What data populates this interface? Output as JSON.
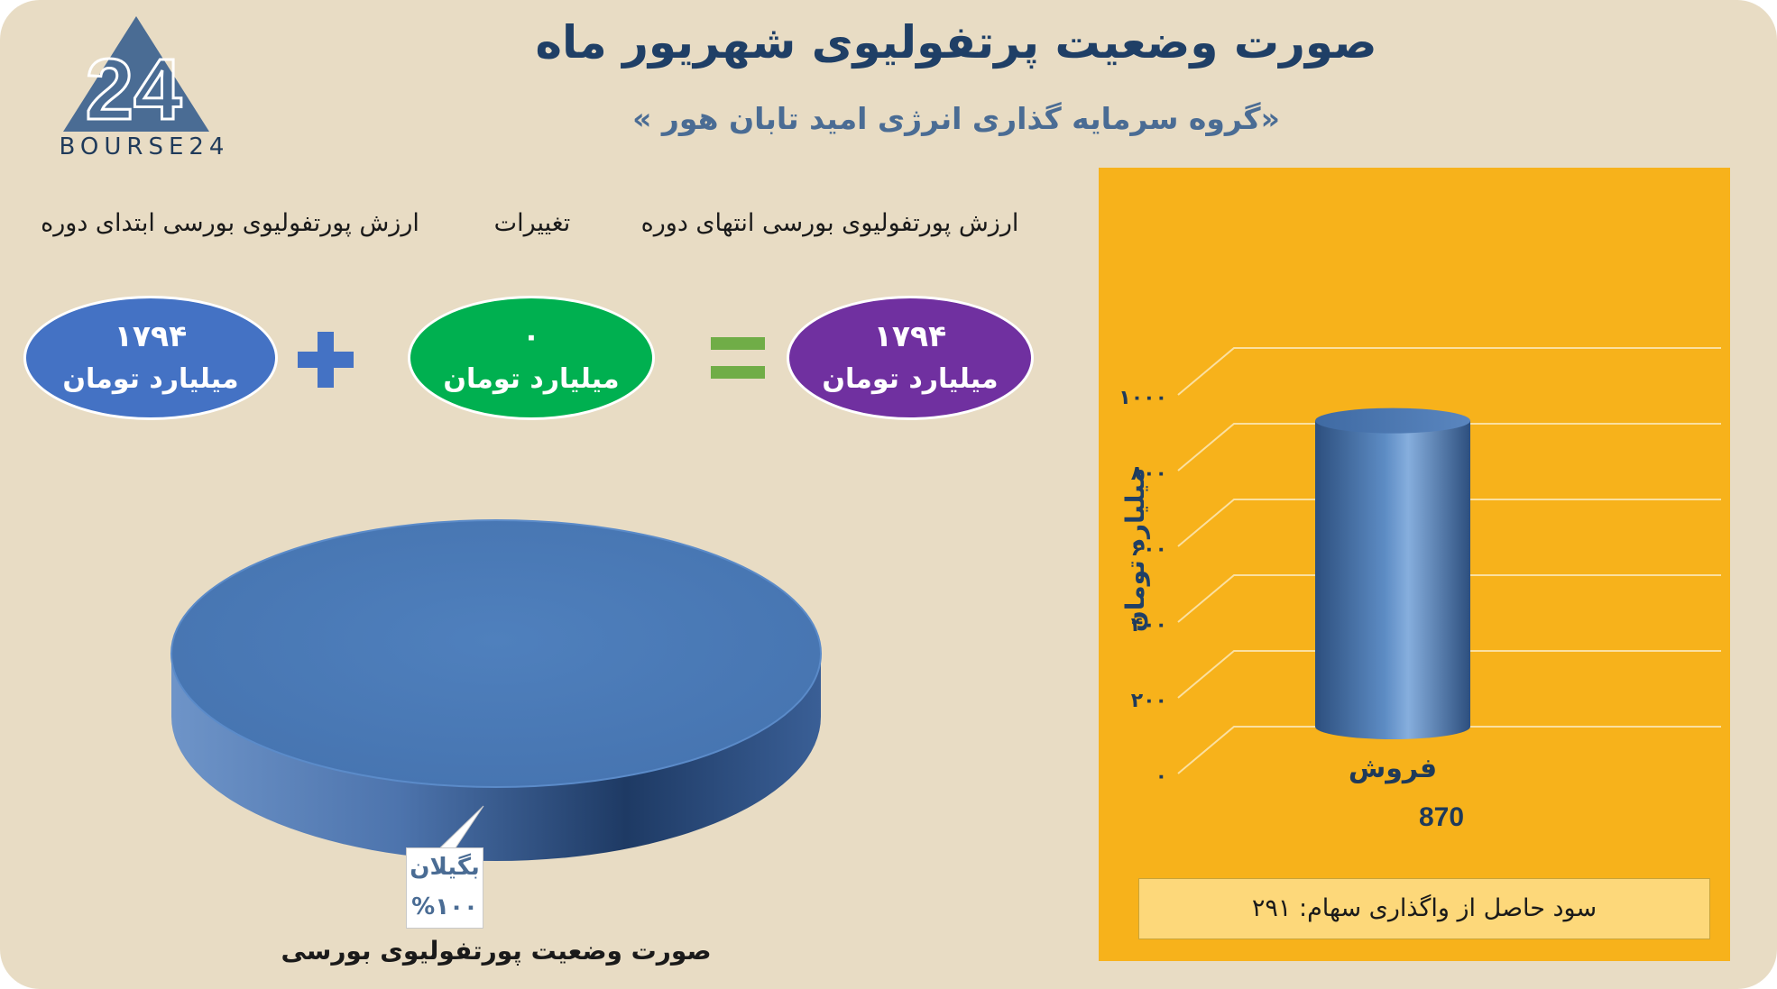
{
  "header": {
    "title": "صورت وضعیت پرتفولیوی شهریور ماه",
    "subtitle": "«گروه سرمایه گذاری انرژی امید تابان هور »"
  },
  "logo": {
    "mark": "24",
    "text": "BOURSE24"
  },
  "equation": {
    "labels": {
      "end": "ارزش پورتفولیوی بورسی انتهای دوره",
      "change": "تغییرات",
      "start": "ارزش پورتفولیوی بورسی ابتدای دوره"
    },
    "start": {
      "value": "۱۷۹۴",
      "unit": "میلیارد تومان"
    },
    "change": {
      "value": "۰",
      "unit": "میلیارد تومان"
    },
    "end": {
      "value": "۱۷۹۴",
      "unit": "میلیارد تومان"
    },
    "plus_icon": "plus-icon",
    "equals_icon": "equals-icon"
  },
  "colors": {
    "blue": "#4472c4",
    "green": "#00b050",
    "purple": "#7030a0",
    "accent_green": "#70ad47",
    "panel": "#f7b21b",
    "cylinder": "#4f81bd"
  },
  "pie": {
    "caption": "صورت وضعیت پورتفولیوی بورسی",
    "label_name": "بگیلان",
    "label_percent": "%۱۰۰"
  },
  "sales": {
    "profit_text": "سود حاصل از واگذاری سهام: ۲۹۱"
  },
  "chart_data": [
    {
      "type": "pie",
      "categories": [
        "بگیلان"
      ],
      "values": [
        100
      ],
      "labels": [
        "%۱۰۰"
      ],
      "title": "صورت وضعیت پورتفولیوی بورسی"
    },
    {
      "type": "bar",
      "categories": [
        "فروش"
      ],
      "values": [
        870
      ],
      "value_labels": [
        "870"
      ],
      "ylabel": "میلیارد تومان",
      "ylim": [
        0,
        1000
      ],
      "yticks": [
        0,
        200,
        400,
        600,
        800,
        1000
      ],
      "ytick_labels": [
        "۰",
        "۲۰۰",
        "۴۰۰",
        "۶۰۰",
        "۸۰۰",
        "۱۰۰۰"
      ],
      "grid": true
    }
  ]
}
